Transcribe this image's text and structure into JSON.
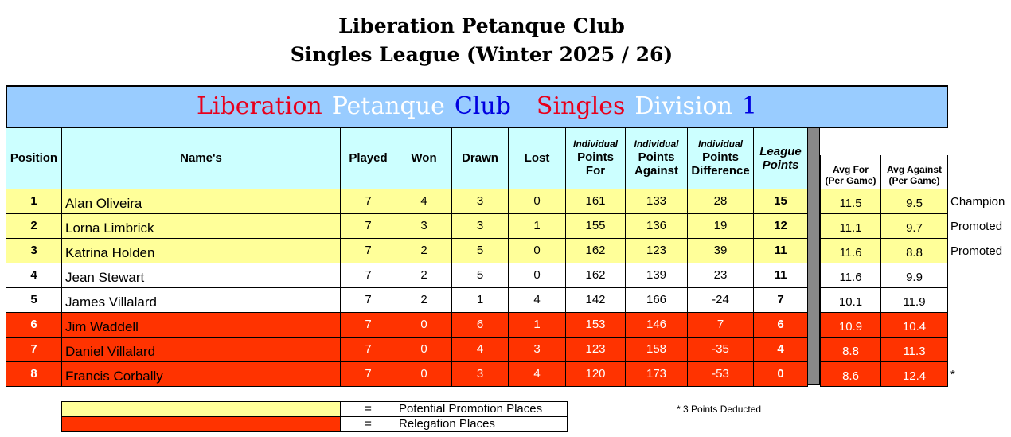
{
  "header": {
    "title": "Liberation Petanque Club",
    "subtitle": "Singles League (Winter 2025 / 26)"
  },
  "table": {
    "banner": [
      {
        "text": "Liberation",
        "color": "#e8001c"
      },
      {
        "text": "Petanque",
        "color": "#ffffff"
      },
      {
        "text": "Club",
        "color": "#0000e0"
      },
      {
        "text": "Singles",
        "color": "#e8001c"
      },
      {
        "text": "Division",
        "color": "#ffffff"
      },
      {
        "text": "1",
        "color": "#0000e0"
      }
    ],
    "columns": [
      [
        "Position"
      ],
      [
        "Name's"
      ],
      [
        "Played"
      ],
      [
        "Won"
      ],
      [
        "Drawn"
      ],
      [
        "Lost"
      ],
      [
        "Individual",
        "Points",
        "For"
      ],
      [
        "Individual",
        "Points",
        "Against"
      ],
      [
        "Individual",
        "Points",
        "Difference"
      ],
      [
        "League",
        "Points"
      ],
      [
        "Avg For",
        "(Per Game)"
      ],
      [
        "Avg Against",
        "(Per Game)"
      ]
    ],
    "rows": [
      [
        1,
        "Alan Oliveira",
        7,
        4,
        3,
        0,
        161,
        133,
        28,
        15,
        11.5,
        9.5,
        "Champion",
        "#ffff99"
      ],
      [
        2,
        "Lorna Limbrick",
        7,
        3,
        3,
        1,
        155,
        136,
        19,
        12,
        11.1,
        9.7,
        "Promoted",
        "#ffff99"
      ],
      [
        3,
        "Katrina Holden",
        7,
        2,
        5,
        0,
        162,
        123,
        39,
        11,
        11.6,
        8.8,
        "Promoted",
        "#ffff99"
      ],
      [
        4,
        "Jean Stewart",
        7,
        2,
        5,
        0,
        162,
        139,
        23,
        11,
        11.6,
        9.9,
        null,
        "#ffffff"
      ],
      [
        5,
        "James Villalard",
        7,
        2,
        1,
        4,
        142,
        166,
        -24,
        7,
        10.1,
        11.9,
        null,
        "#ffffff"
      ],
      [
        6,
        "Jim Waddell",
        7,
        0,
        6,
        1,
        153,
        146,
        7,
        6,
        10.9,
        10.4,
        null,
        "#ff3300"
      ],
      [
        7,
        "Daniel Villalard",
        7,
        0,
        4,
        3,
        123,
        158,
        -35,
        4,
        8.8,
        11.3,
        null,
        "#ff3300"
      ],
      [
        8,
        "Francis Corbally",
        7,
        0,
        3,
        4,
        120,
        173,
        -53,
        0,
        8.6,
        12.4,
        "*",
        "#ff3300"
      ]
    ]
  },
  "legend": [
    {
      "color": "#ffff99",
      "symbol": "=",
      "text": "Potential Promotion Places"
    },
    {
      "color": "#ff3300",
      "symbol": "=",
      "text": "Relegation Places"
    }
  ],
  "footnote": "* 3 Points Deducted"
}
